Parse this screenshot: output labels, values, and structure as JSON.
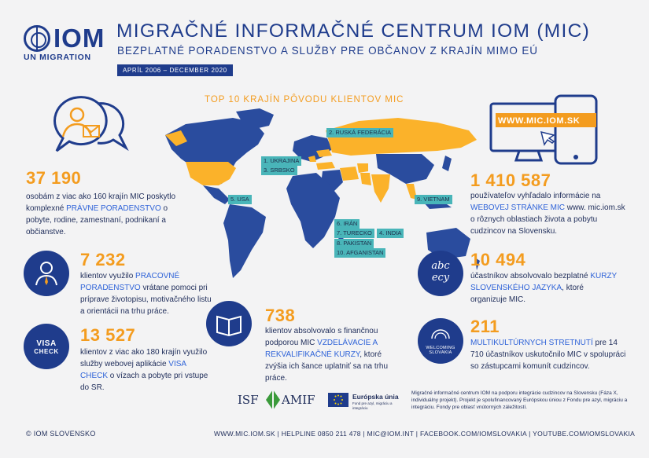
{
  "header": {
    "logo_text": "IOM",
    "logo_sub": "UN MIGRATION",
    "title": "MIGRAČNÉ INFORMAČNÉ CENTRUM IOM (MIC)",
    "subtitle": "BEZPLATNÉ PORADENSTVO A SLUŽBY PRE OBČANOV Z KRAJÍN MIMO EÚ",
    "date_range": "APRÍL 2006 – DECEMBER 2020"
  },
  "map": {
    "title": "TOP 10 KRAJÍN PÔVODU KLIENTOV MIC",
    "labels": [
      "1. UKRAJINA",
      "2. RUSKÁ FEDERÁCIA",
      "3. SRBSKO",
      "4. INDIA",
      "5. USA",
      "6. IRÁN",
      "7. TURECKO",
      "8. PAKISTAN",
      "9. VIETNAM",
      "10. AFGANISTAN"
    ],
    "colors": {
      "highlight": "#fbb22a",
      "other": "#2a4c9e",
      "label_bg": "#49b5b9"
    }
  },
  "stats": {
    "s1": {
      "num": "37 190",
      "pre": "osobám z viac ako 160 krajín MIC poskytlo komplexné ",
      "link": "PRÁVNE PORADENSTVO",
      "post": " o pobyte, rodine, zamestnaní, podnikaní a  občianstve."
    },
    "s2": {
      "num": "7 232",
      "pre": "klientov využilo ",
      "link": "PRACOVNÉ PORADENSTVO",
      "post": " vrátane pomoci pri príprave životopisu, motivačného listu a orientácii na trhu práce."
    },
    "s3": {
      "num": "13 527",
      "pre": "klientov z viac ako 180 krajín využilo služby webovej aplikácie ",
      "link": "VISA CHECK",
      "post": " o vízach a pobyte pri vstupe do SR."
    },
    "s4": {
      "num": "738",
      "pre": "klientov absolvovalo s finančnou podporou MIC ",
      "link": "VZDELÁVACIE A REKVALIFIKAČNÉ KURZY",
      "post": ", ktoré zvýšia ich šance uplatniť sa na trhu práce."
    },
    "s5": {
      "num": "1 410 587",
      "pre": "používateľov vyhľadalo informácie na ",
      "link": "WEBOVEJ STRÁNKE MIC",
      "link2": " www. mic.iom.sk",
      "post": " o rôznych oblastiach života a pobytu cudzincov na Slovensku."
    },
    "s6": {
      "num": "10 494",
      "pre": "účastníkov absolvovalo bezplatné ",
      "link": "KURZY SLOVENSKÉHO JAZYKA",
      "post": ", ktoré organizuje MIC."
    },
    "s7": {
      "num": "211",
      "link": "MULTIKULTÚRNYCH STRETNUTÍ",
      "post": " pre 14 710 účastníkov uskutočnilo MIC v spolupráci so zástupcami komunít cudzincov."
    }
  },
  "icons": {
    "visa_line1": "VISA",
    "visa_line2": "CHECK",
    "web_banner": "WWW.MIC.IOM.SK",
    "welcoming_line1": "WELCOMING",
    "welcoming_line2": "SLOVAKIA",
    "abc_text": "abc",
    "ecy_text": "ecy"
  },
  "funding": {
    "isf": "ISF",
    "amif": "AMIF",
    "eu_title": "Európska únia",
    "eu_sub": "Fond pre azyl, migráciu a integráciu",
    "note": "Migračné informačné centrum IOM na podporu integrácie cudzincov na Slovensku (Fáza X, individuálny projekt). Projekt je spolufinancovaný Európskou úniou z Fondu pre azyl, migráciu a integráciu. Fondy pre oblasť vnútorných záležitostí."
  },
  "footer": {
    "left": "© IOM SLOVENSKO",
    "right": "WWW.MIC.IOM.SK | HELPLINE 0850 211 478 |  MIC@IOM.INT | FACEBOOK.COM/IOMSLOVAKIA | YOUTUBE.COM/IOMSLOVAKIA"
  }
}
